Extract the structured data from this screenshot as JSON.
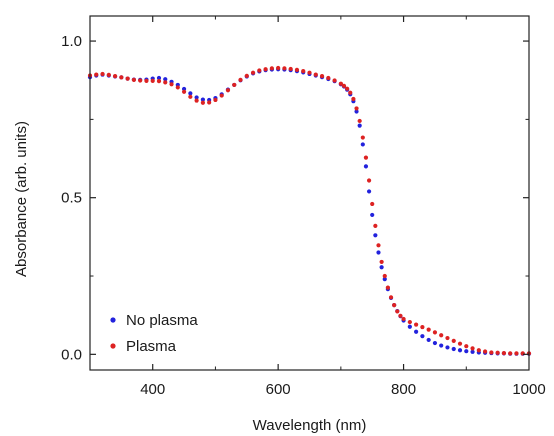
{
  "chart_data": {
    "type": "scatter",
    "xlabel": "Wavelength (nm)",
    "ylabel": "Absorbance (arb. units)",
    "xlim": [
      300,
      1000
    ],
    "ylim": [
      -0.05,
      1.08
    ],
    "xticks": [
      "400",
      "600",
      "800",
      "1000"
    ],
    "xtick_values": [
      400,
      600,
      800,
      1000
    ],
    "yticks": [
      "0.0",
      "0.5",
      "1.0"
    ],
    "ytick_values": [
      0.0,
      0.5,
      1.0
    ],
    "legend_position": "bottom-left",
    "grid": false,
    "series": [
      {
        "name": "No plasma",
        "color": "#2222dd",
        "x": [
          300,
          310,
          320,
          330,
          340,
          350,
          360,
          370,
          380,
          390,
          400,
          410,
          420,
          430,
          440,
          450,
          460,
          470,
          480,
          490,
          500,
          510,
          520,
          530,
          540,
          550,
          560,
          570,
          580,
          590,
          600,
          610,
          620,
          630,
          640,
          650,
          660,
          670,
          680,
          690,
          700,
          705,
          710,
          715,
          720,
          725,
          730,
          735,
          740,
          745,
          750,
          755,
          760,
          765,
          770,
          775,
          780,
          785,
          790,
          795,
          800,
          810,
          820,
          830,
          840,
          850,
          860,
          870,
          880,
          890,
          900,
          910,
          920,
          930,
          940,
          950,
          960,
          970,
          980,
          990,
          1000
        ],
        "y": [
          0.885,
          0.89,
          0.893,
          0.89,
          0.887,
          0.884,
          0.88,
          0.877,
          0.876,
          0.877,
          0.88,
          0.882,
          0.878,
          0.87,
          0.86,
          0.847,
          0.833,
          0.82,
          0.813,
          0.812,
          0.818,
          0.83,
          0.845,
          0.86,
          0.875,
          0.887,
          0.897,
          0.903,
          0.907,
          0.909,
          0.91,
          0.909,
          0.907,
          0.904,
          0.9,
          0.895,
          0.89,
          0.885,
          0.879,
          0.872,
          0.862,
          0.855,
          0.845,
          0.83,
          0.808,
          0.775,
          0.73,
          0.67,
          0.6,
          0.52,
          0.445,
          0.38,
          0.325,
          0.278,
          0.24,
          0.208,
          0.18,
          0.157,
          0.138,
          0.122,
          0.108,
          0.088,
          0.072,
          0.058,
          0.046,
          0.036,
          0.028,
          0.022,
          0.017,
          0.013,
          0.01,
          0.008,
          0.006,
          0.005,
          0.004,
          0.003,
          0.003,
          0.002,
          0.002,
          0.002,
          0.002
        ]
      },
      {
        "name": "Plasma",
        "color": "#dd2222",
        "x": [
          300,
          310,
          320,
          330,
          340,
          350,
          360,
          370,
          380,
          390,
          400,
          410,
          420,
          430,
          440,
          450,
          460,
          470,
          480,
          490,
          500,
          510,
          520,
          530,
          540,
          550,
          560,
          570,
          580,
          590,
          600,
          610,
          620,
          630,
          640,
          650,
          660,
          670,
          680,
          690,
          700,
          705,
          710,
          715,
          720,
          725,
          730,
          735,
          740,
          745,
          750,
          755,
          760,
          765,
          770,
          775,
          780,
          785,
          790,
          795,
          800,
          810,
          820,
          830,
          840,
          850,
          860,
          870,
          880,
          890,
          900,
          910,
          920,
          930,
          940,
          950,
          960,
          970,
          980,
          990,
          1000
        ],
        "y": [
          0.89,
          0.893,
          0.895,
          0.892,
          0.888,
          0.884,
          0.88,
          0.876,
          0.874,
          0.873,
          0.873,
          0.872,
          0.868,
          0.862,
          0.852,
          0.838,
          0.822,
          0.81,
          0.803,
          0.804,
          0.812,
          0.826,
          0.843,
          0.86,
          0.876,
          0.889,
          0.899,
          0.906,
          0.91,
          0.913,
          0.914,
          0.913,
          0.911,
          0.908,
          0.904,
          0.899,
          0.893,
          0.888,
          0.882,
          0.874,
          0.864,
          0.857,
          0.848,
          0.835,
          0.815,
          0.785,
          0.745,
          0.692,
          0.628,
          0.555,
          0.48,
          0.41,
          0.348,
          0.295,
          0.25,
          0.213,
          0.182,
          0.157,
          0.137,
          0.123,
          0.113,
          0.103,
          0.095,
          0.087,
          0.079,
          0.07,
          0.061,
          0.052,
          0.043,
          0.034,
          0.026,
          0.019,
          0.013,
          0.009,
          0.006,
          0.005,
          0.004,
          0.003,
          0.003,
          0.003,
          0.003
        ]
      }
    ]
  }
}
